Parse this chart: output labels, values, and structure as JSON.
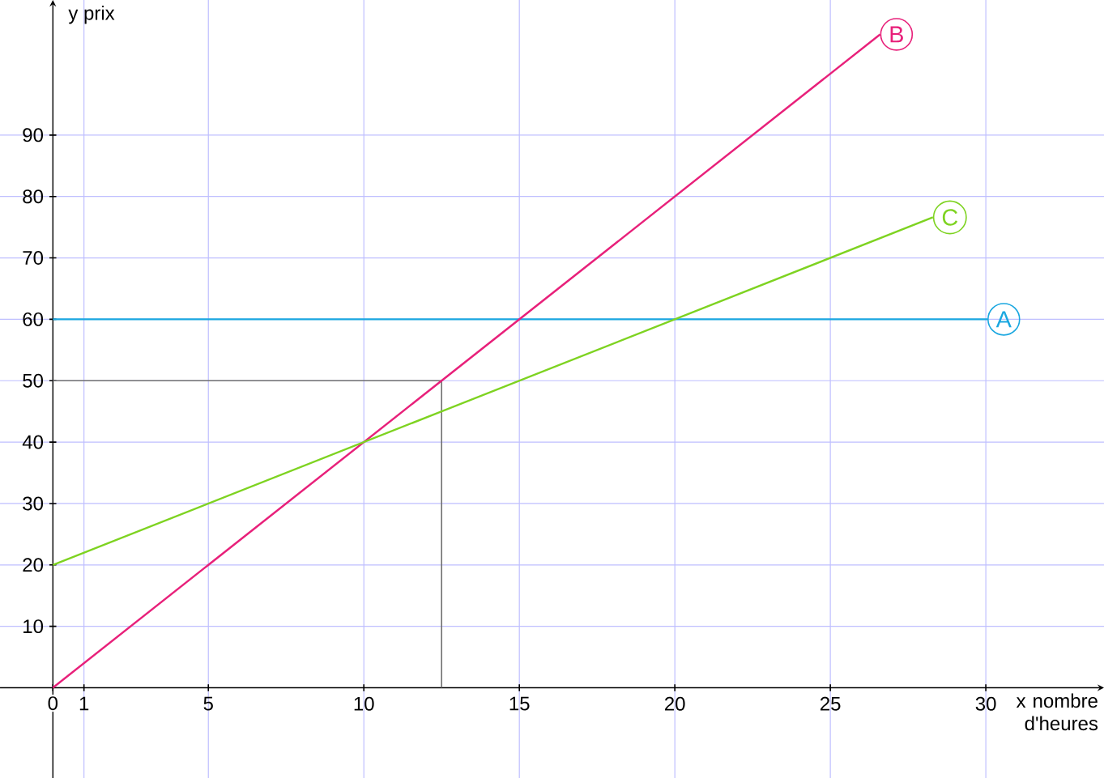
{
  "chart_data": {
    "type": "line",
    "xlabel": "x nombre d'heures",
    "ylabel": "y prix",
    "xlim": [
      -1.7,
      33.8
    ],
    "ylim": [
      -14.7,
      112
    ],
    "xticks": [
      0,
      1,
      5,
      10,
      15,
      20,
      25,
      30
    ],
    "yticks": [
      10,
      20,
      30,
      40,
      50,
      60,
      70,
      80,
      90
    ],
    "grid": true,
    "legend": "right",
    "series": [
      {
        "name": "A",
        "color": "#1aa7e0",
        "x": [
          0,
          30.05
        ],
        "values": [
          60,
          60
        ]
      },
      {
        "name": "B",
        "color": "#e8207a",
        "x": [
          0,
          26.6
        ],
        "values": [
          0,
          106.4
        ]
      },
      {
        "name": "C",
        "color": "#7ed321",
        "x": [
          0,
          28.3
        ],
        "values": [
          20,
          76.6
        ]
      }
    ],
    "ref_lines": [
      {
        "axis": "y",
        "value": 50,
        "color": "#707070"
      },
      {
        "axis": "x",
        "value": 12.5,
        "color": "#707070"
      }
    ]
  }
}
